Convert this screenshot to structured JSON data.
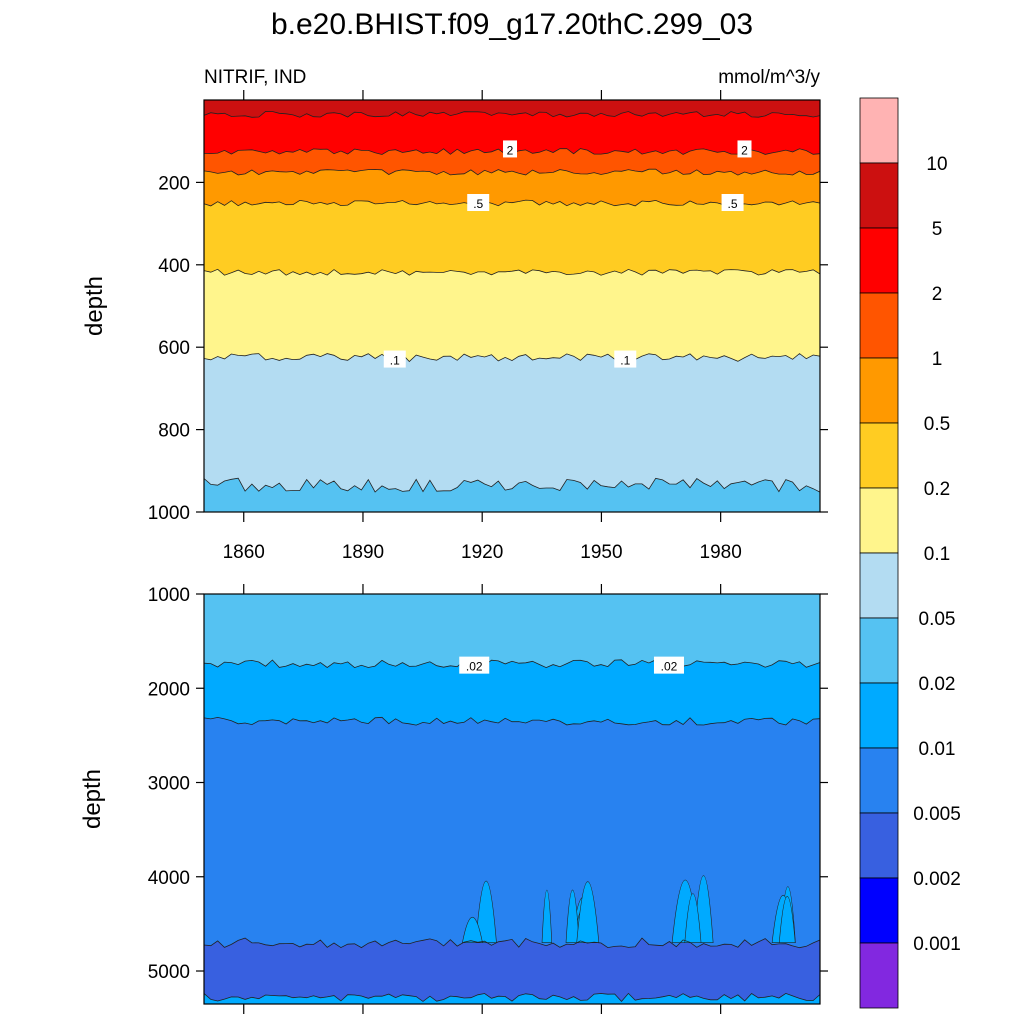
{
  "title": "b.e20.BHIST.f09_g17.20thC.299_03",
  "subtitle_left": "NITRIF, IND",
  "subtitle_right": "mmol/m^3/y",
  "chart_data": [
    {
      "type": "heatmap",
      "panel": "upper",
      "ylabel": "depth",
      "xlim": [
        1850,
        2005
      ],
      "ylim": [
        1000,
        0
      ],
      "x_ticks": [
        "1860",
        "1890",
        "1920",
        "1950",
        "1980"
      ],
      "y_ticks": [
        "200",
        "400",
        "600",
        "800",
        "1000"
      ],
      "contour_levels": [
        {
          "value": 5,
          "mean_depth": 35
        },
        {
          "value": 2,
          "mean_depth": 125
        },
        {
          "value": 1,
          "mean_depth": 175
        },
        {
          "value": 0.5,
          "mean_depth": 250
        },
        {
          "value": 0.2,
          "mean_depth": 418
        },
        {
          "value": 0.1,
          "mean_depth": 625
        },
        {
          "value": 0.05,
          "mean_depth": 935
        }
      ],
      "contour_labels": [
        {
          "text": "2",
          "year": 1927,
          "depth": 120
        },
        {
          "text": "2",
          "year": 1986,
          "depth": 120
        },
        {
          "text": ".5",
          "year": 1919,
          "depth": 250
        },
        {
          "text": ".5",
          "year": 1983,
          "depth": 250
        },
        {
          "text": ".1",
          "year": 1898,
          "depth": 630
        },
        {
          "text": ".1",
          "year": 1956,
          "depth": 630
        }
      ]
    },
    {
      "type": "heatmap",
      "panel": "lower",
      "ylabel": "depth",
      "xlim": [
        1850,
        2005
      ],
      "ylim": [
        5350,
        1000
      ],
      "y_ticks": [
        "1000",
        "2000",
        "3000",
        "4000",
        "5000"
      ],
      "contour_levels": [
        {
          "value": 0.02,
          "mean_depth": 1740
        },
        {
          "value": 0.01,
          "mean_depth": 2350
        },
        {
          "value": 0.005,
          "mean_depth": 4700
        },
        {
          "value": 0.01,
          "mean_depth": 5280
        }
      ],
      "contour_labels": [
        {
          "text": ".02",
          "year": 1918,
          "depth": 1760
        },
        {
          "text": ".02",
          "year": 1967,
          "depth": 1760
        }
      ]
    }
  ],
  "colorbar": {
    "labels": [
      "10",
      "5",
      "2",
      "1",
      "0.5",
      "0.2",
      "0.1",
      "0.05",
      "0.02",
      "0.01",
      "0.005",
      "0.002",
      "0.001"
    ],
    "colors": [
      "#FFB3B3",
      "#CC1010",
      "#FF0000",
      "#FF5500",
      "#FF9900",
      "#FFCC22",
      "#FFF58C",
      "#B3DCF2",
      "#55C2F2",
      "#00AAFF",
      "#2882F0",
      "#3860E0",
      "#0000FF",
      "#8228E0"
    ]
  }
}
